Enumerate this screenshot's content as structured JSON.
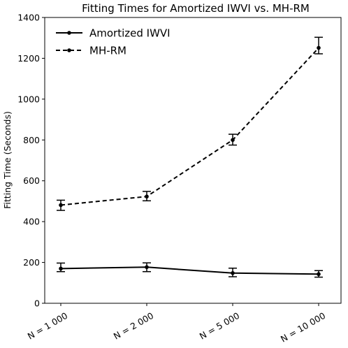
{
  "chart_data": {
    "type": "line",
    "title": "Fitting Times for Amortized IWVI vs. MH-RM",
    "xlabel": "",
    "ylabel": "Fitting Time (Seconds)",
    "categories": [
      "N = 1 000",
      "N = 2 000",
      "N = 5 000",
      "N = 10 000"
    ],
    "ylim": [
      0,
      1400
    ],
    "yticks": [
      0,
      200,
      400,
      600,
      800,
      1000,
      1200,
      1400
    ],
    "legend_position": "top-left",
    "grid": false,
    "series": [
      {
        "name": "Amortized IWVI",
        "line_style": "solid",
        "color": "#000000",
        "values": [
          170,
          177,
          148,
          143
        ],
        "error_low": [
          155,
          155,
          130,
          128
        ],
        "error_high": [
          197,
          198,
          172,
          160
        ]
      },
      {
        "name": "MH-RM",
        "line_style": "dashed",
        "color": "#000000",
        "values": [
          481,
          523,
          800,
          1251
        ],
        "error_low": [
          455,
          502,
          775,
          1222
        ],
        "error_high": [
          505,
          548,
          828,
          1303
        ]
      }
    ]
  }
}
